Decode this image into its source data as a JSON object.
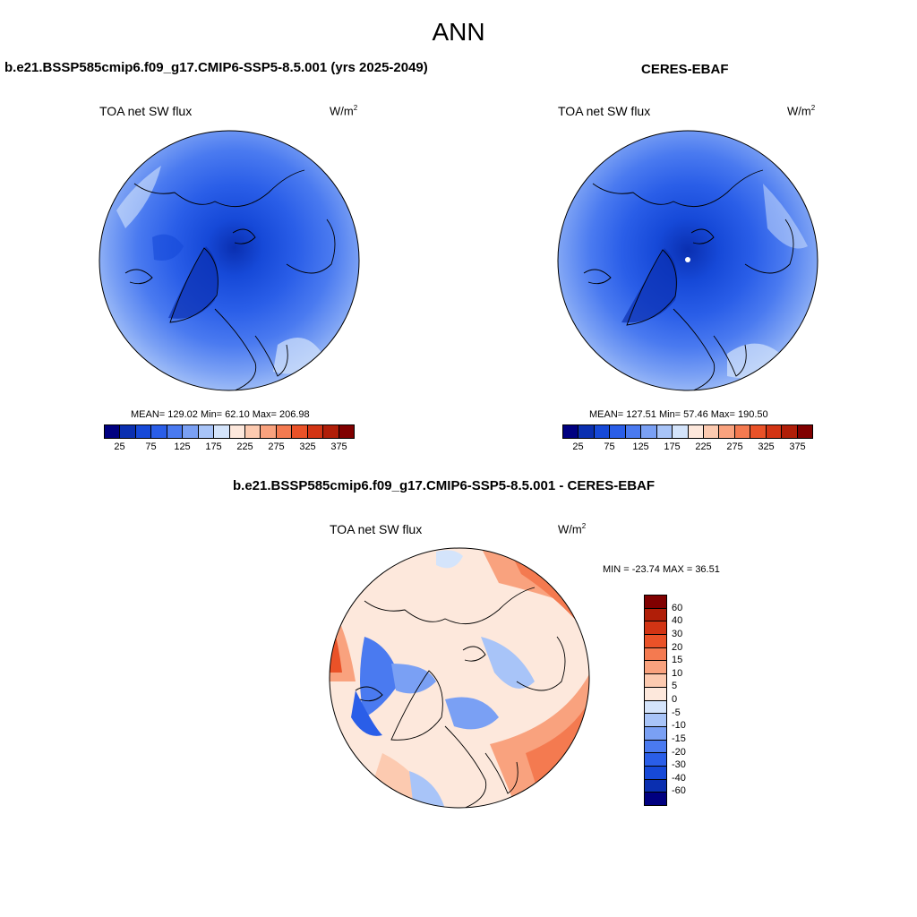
{
  "season": "ANN",
  "panels": [
    {
      "title": "b.e21.BSSP585cmip6.f09_g17.CMIP6-SSP5-8.5.001 (yrs 2025-2049)",
      "variable": "TOA net SW flux",
      "unit_base": "W/m",
      "unit_exp": "2",
      "stats": "MEAN= 129.02  Min=  62.10  Max= 206.98"
    },
    {
      "title": "CERES-EBAF",
      "variable": "TOA net SW flux",
      "unit_base": "W/m",
      "unit_exp": "2",
      "stats": "MEAN= 127.51  Min=  57.46  Max= 190.50"
    },
    {
      "title": "b.e21.BSSP585cmip6.f09_g17.CMIP6-SSP5-8.5.001 - CERES-EBAF",
      "variable": "TOA net SW flux",
      "unit_base": "W/m",
      "unit_exp": "2",
      "stats": "MIN = -23.74 MAX =  36.51"
    }
  ],
  "colorbar_abs": {
    "colors": [
      "#000080",
      "#0a2fb0",
      "#1649d8",
      "#2a5ee8",
      "#4a7af0",
      "#7aa0f4",
      "#a8c4f8",
      "#d4e4fb",
      "#fde8dc",
      "#fccab0",
      "#f9a27e",
      "#f47a50",
      "#ea5228",
      "#d23414",
      "#b01e08",
      "#800000"
    ],
    "ticks": [
      "25",
      "75",
      "125",
      "175",
      "225",
      "275",
      "325",
      "375"
    ]
  },
  "colorbar_diff": {
    "colors": [
      "#800000",
      "#b01e08",
      "#d23414",
      "#ea5228",
      "#f47a50",
      "#f9a27e",
      "#fccab0",
      "#fde8dc",
      "#d4e4fb",
      "#a8c4f8",
      "#7aa0f4",
      "#4a7af0",
      "#2a5ee8",
      "#1649d8",
      "#0a2fb0",
      "#000080"
    ],
    "ticks": [
      "60",
      "40",
      "30",
      "20",
      "15",
      "10",
      "5",
      "0",
      "-5",
      "-10",
      "-15",
      "-20",
      "-30",
      "-40",
      "-60"
    ]
  }
}
